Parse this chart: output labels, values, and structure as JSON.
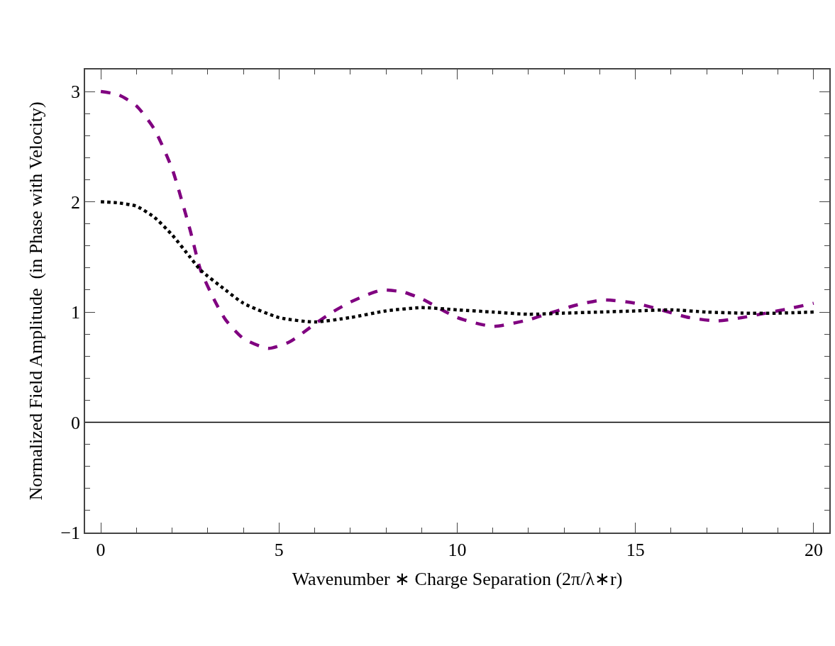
{
  "chart_data": {
    "type": "line",
    "xlabel": "Wavenumber ∗ Charge Separation (2π/λ∗r)",
    "ylabel": "Normalized Field Amplitude  (in Phase with Velocity)",
    "xlim": [
      -0.44,
      20.44
    ],
    "ylim": [
      -1,
      3.2
    ],
    "xticks": [
      0,
      5,
      10,
      15,
      20
    ],
    "yticks": [
      -1,
      0,
      1,
      2,
      3
    ],
    "grid": false,
    "ref_lines": [
      {
        "axis": "y",
        "value": 0,
        "label": null,
        "color": "#000000",
        "line_style": "solid"
      }
    ],
    "series": [
      {
        "color": "#800080",
        "line_style": "dashed",
        "x": [
          0,
          0.5,
          1,
          1.5,
          2,
          2.5,
          2.8,
          3.2,
          3.5,
          4,
          4.7,
          5.3,
          6,
          6.5,
          7,
          7.5,
          7.9,
          8.5,
          9,
          10,
          11,
          12,
          12.5,
          13.3,
          14.1,
          15,
          15.5,
          16.5,
          17.3,
          18,
          18.5,
          19.3,
          20
        ],
        "values": [
          3,
          2.97,
          2.87,
          2.66,
          2.3,
          1.75,
          1.38,
          1.1,
          0.93,
          0.76,
          0.67,
          0.73,
          0.89,
          1,
          1.09,
          1.16,
          1.2,
          1.18,
          1.12,
          0.95,
          0.87,
          0.93,
          0.98,
          1.06,
          1.11,
          1.08,
          1.04,
          0.95,
          0.92,
          0.95,
          0.98,
          1.03,
          1.08
        ]
      },
      {
        "color": "#000000",
        "line_style": "dotted",
        "x": [
          0,
          0.5,
          1,
          1.5,
          2,
          2.5,
          2.8,
          3.5,
          4,
          5,
          6,
          7,
          8,
          9,
          10,
          11,
          12,
          13,
          14,
          15,
          16,
          17,
          18,
          19,
          20
        ],
        "values": [
          2,
          1.99,
          1.96,
          1.86,
          1.7,
          1.5,
          1.38,
          1.2,
          1.08,
          0.95,
          0.91,
          0.95,
          1.01,
          1.04,
          1.02,
          1,
          0.98,
          0.99,
          1,
          1.01,
          1.02,
          1,
          0.99,
          0.99,
          1
        ]
      }
    ]
  }
}
